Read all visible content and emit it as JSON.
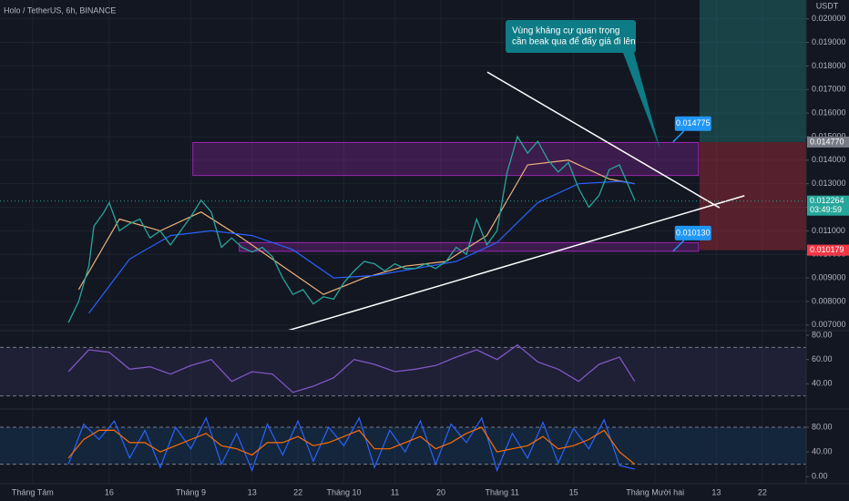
{
  "chart_data": [
    {
      "type": "line",
      "title": "Holo / TetherUS, 6h, BINANCE",
      "y_axis_label": "USDT",
      "x": [
        7,
        9,
        11,
        12,
        14,
        15,
        17,
        19,
        21,
        23,
        25,
        27,
        29,
        31,
        33,
        35,
        37,
        39,
        41,
        43,
        45,
        47,
        49,
        51,
        53,
        55,
        57,
        59,
        61,
        63,
        65,
        67,
        69,
        71,
        73,
        75,
        77,
        79,
        81,
        83,
        85,
        87,
        89,
        91,
        93,
        95,
        97,
        99,
        101,
        103,
        105,
        107,
        109,
        111,
        113,
        115,
        117,
        118
      ],
      "values": [
        0.0071,
        0.008,
        0.0095,
        0.0112,
        0.0118,
        0.0122,
        0.011,
        0.0113,
        0.0115,
        0.0107,
        0.011,
        0.0104,
        0.011,
        0.0116,
        0.0123,
        0.0118,
        0.0103,
        0.0107,
        0.0103,
        0.0101,
        0.0103,
        0.0099,
        0.009,
        0.0083,
        0.0085,
        0.0079,
        0.0082,
        0.0081,
        0.0088,
        0.0093,
        0.0097,
        0.0096,
        0.0093,
        0.0096,
        0.0094,
        0.0094,
        0.0096,
        0.0094,
        0.0097,
        0.0103,
        0.01,
        0.0115,
        0.0104,
        0.011,
        0.0135,
        0.015,
        0.0143,
        0.0148,
        0.014,
        0.0135,
        0.0139,
        0.0128,
        0.012,
        0.0125,
        0.0136,
        0.0138,
        0.0128,
        0.0123
      ],
      "color": "#26a69a",
      "xlim": [
        -6.4,
        151.6
      ],
      "xticks": [
        {
          "value": 0,
          "label": "Tháng Tám"
        },
        {
          "value": 15,
          "label": "16"
        },
        {
          "value": 31,
          "label": "Tháng 9"
        },
        {
          "value": 43,
          "label": "13"
        },
        {
          "value": 52,
          "label": "22"
        },
        {
          "value": 61,
          "label": "Tháng 10"
        },
        {
          "value": 71,
          "label": "11"
        },
        {
          "value": 80,
          "label": "20"
        },
        {
          "value": 92,
          "label": "Tháng 11"
        },
        {
          "value": 106,
          "label": "15"
        },
        {
          "value": 122,
          "label": "Tháng Mười hai"
        },
        {
          "value": 134,
          "label": "13"
        },
        {
          "value": 143,
          "label": "22"
        }
      ],
      "ylim": [
        0.0068,
        0.0208
      ],
      "yticks": [
        {
          "value": 0.02,
          "label": "0.020000"
        },
        {
          "value": 0.019,
          "label": "0.019000"
        },
        {
          "value": 0.018,
          "label": "0.018000"
        },
        {
          "value": 0.017,
          "label": "0.017000"
        },
        {
          "value": 0.016,
          "label": "0.016000"
        },
        {
          "value": 0.015,
          "label": "0.015000"
        },
        {
          "value": 0.014,
          "label": "0.014000"
        },
        {
          "value": 0.013,
          "label": "0.013000"
        },
        {
          "value": 0.012,
          "label": "0.012000"
        },
        {
          "value": 0.011,
          "label": "0.011000"
        },
        {
          "value": 0.01,
          "label": "0.010000"
        },
        {
          "value": 0.009,
          "label": "0.009000"
        },
        {
          "value": 0.008,
          "label": "0.008000"
        },
        {
          "value": 0.007,
          "label": "0.007000"
        }
      ],
      "grid": true,
      "moving_averages": [
        {
          "color": "#f0b27a",
          "x": [
            9,
            17,
            25,
            33,
            41,
            49,
            57,
            65,
            73,
            81,
            89,
            97,
            105,
            113,
            118
          ],
          "values": [
            0.0085,
            0.0115,
            0.011,
            0.0118,
            0.0107,
            0.0095,
            0.0083,
            0.009,
            0.0095,
            0.0097,
            0.0108,
            0.0138,
            0.014,
            0.0132,
            0.013
          ]
        },
        {
          "color": "#2962ff",
          "x": [
            11,
            19,
            27,
            35,
            43,
            51,
            59,
            67,
            75,
            83,
            91,
            99,
            107,
            115,
            118
          ],
          "values": [
            0.0075,
            0.0098,
            0.0108,
            0.011,
            0.0108,
            0.0102,
            0.009,
            0.0091,
            0.0094,
            0.0097,
            0.0105,
            0.0122,
            0.013,
            0.0131,
            0.013
          ]
        }
      ],
      "zones": [
        {
          "color": "#9c27b0",
          "x": [
            31.4,
            130.5
          ],
          "y": [
            0.01335,
            0.01475
          ]
        },
        {
          "color": "#9c27b0",
          "x": [
            40.5,
            130.5
          ],
          "y": [
            0.01013,
            0.0105
          ]
        }
      ],
      "trendlines": [
        {
          "color": "#ffffff",
          "x": [
            89.1,
            134.6
          ],
          "y": [
            0.01774,
            0.01198
          ]
        },
        {
          "color": "#ffffff",
          "x": [
            49.3,
            139.5
          ],
          "y": [
            0.00672,
            0.01249
          ]
        }
      ],
      "position": {
        "x_start": 130.7,
        "entry": 0.01477,
        "stop": 0.010179,
        "target": 0.0215,
        "profit_color": "#26a69a",
        "loss_color": "#f23645"
      },
      "price_labels": [
        {
          "value": 0.014775,
          "label": "0.014775",
          "x": 125.5
        },
        {
          "value": 0.01013,
          "label": "0.010130",
          "x": 125.5
        }
      ],
      "axis_tags": [
        {
          "value": 0.01477,
          "label": "0.014770",
          "color": "#787b86"
        },
        {
          "value": 0.012264,
          "label": "0.012264",
          "color": "#26a69a",
          "countdown": "03:49:59"
        },
        {
          "value": 0.010179,
          "label": "0.010179",
          "color": "#f23645"
        }
      ],
      "callout": {
        "text_lines": [
          "Vùng kháng cự quan trọng",
          "cần beak qua để đẩy giá đi lên"
        ]
      }
    },
    {
      "type": "line",
      "x": [
        7,
        11,
        15,
        19,
        23,
        27,
        31,
        35,
        39,
        43,
        47,
        51,
        55,
        59,
        63,
        67,
        71,
        75,
        79,
        83,
        87,
        91,
        95,
        99,
        103,
        107,
        111,
        115,
        118
      ],
      "values": [
        50,
        68,
        66,
        52,
        54,
        48,
        55,
        60,
        42,
        50,
        48,
        33,
        38,
        45,
        60,
        56,
        50,
        52,
        55,
        62,
        68,
        60,
        72,
        58,
        52,
        42,
        56,
        62,
        42
      ],
      "color": "#7e57c2",
      "ylim": [
        20,
        83
      ],
      "yticks": [
        {
          "value": 80,
          "label": "80.00"
        },
        {
          "value": 60,
          "label": "60.00"
        },
        {
          "value": 40,
          "label": "40.00"
        }
      ],
      "levels": [
        70,
        30
      ],
      "band_color": "#7e57c2"
    },
    {
      "type": "line",
      "x": [
        7,
        10,
        13,
        16,
        19,
        22,
        25,
        28,
        31,
        34,
        37,
        40,
        43,
        46,
        49,
        52,
        55,
        58,
        61,
        64,
        67,
        70,
        73,
        76,
        79,
        82,
        85,
        88,
        91,
        94,
        97,
        100,
        103,
        106,
        109,
        112,
        115,
        118
      ],
      "series": [
        {
          "color": "#2962ff",
          "values": [
            20,
            85,
            60,
            90,
            30,
            75,
            15,
            80,
            45,
            95,
            20,
            70,
            10,
            85,
            35,
            90,
            25,
            80,
            50,
            95,
            15,
            75,
            40,
            90,
            20,
            85,
            55,
            95,
            10,
            70,
            30,
            88,
            22,
            78,
            45,
            92,
            18,
            12
          ]
        },
        {
          "color": "#ff6d00",
          "values": [
            30,
            60,
            75,
            75,
            55,
            55,
            40,
            50,
            60,
            70,
            50,
            45,
            35,
            55,
            55,
            65,
            50,
            55,
            65,
            75,
            45,
            45,
            55,
            65,
            45,
            55,
            70,
            80,
            40,
            45,
            50,
            65,
            45,
            50,
            60,
            75,
            40,
            20
          ]
        }
      ],
      "ylim": [
        -10,
        108
      ],
      "yticks": [
        {
          "value": 80,
          "label": "80.00"
        },
        {
          "value": 40,
          "label": "40.00"
        },
        {
          "value": 0,
          "label": "0.00"
        }
      ],
      "levels": [
        80,
        20
      ],
      "band_color": "#2196f3"
    }
  ]
}
